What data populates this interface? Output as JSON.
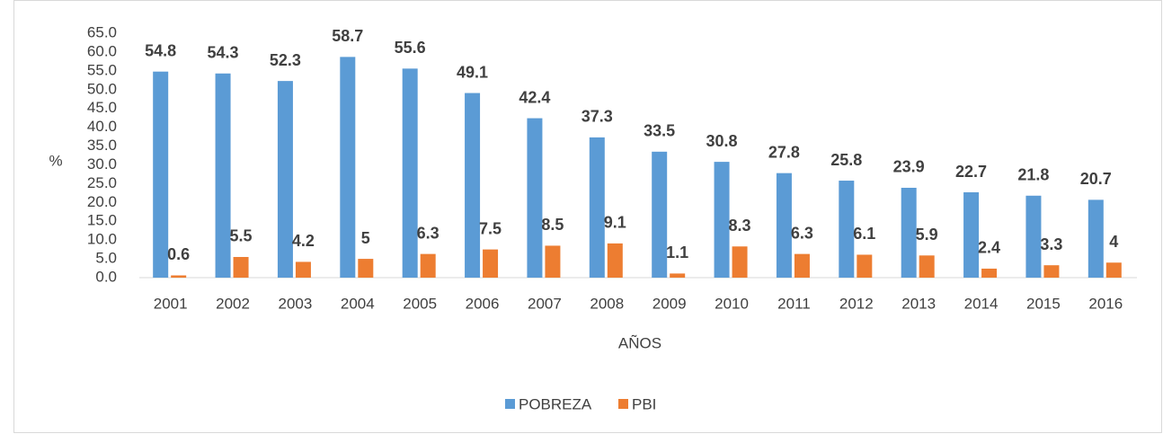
{
  "chart_data": {
    "type": "bar",
    "x_label": "AÑOS",
    "y_label": "%",
    "categories": [
      "2001",
      "2002",
      "2003",
      "2004",
      "2005",
      "2006",
      "2007",
      "2008",
      "2009",
      "2010",
      "2011",
      "2012",
      "2013",
      "2014",
      "2015",
      "2016"
    ],
    "series": [
      {
        "name": "POBREZA",
        "color": "#5b9bd5",
        "values": [
          54.8,
          54.3,
          52.3,
          58.7,
          55.6,
          49.1,
          42.4,
          37.3,
          33.5,
          30.8,
          27.8,
          25.8,
          23.9,
          22.7,
          21.8,
          20.7
        ]
      },
      {
        "name": "PBI",
        "color": "#ed7d31",
        "values": [
          0.6,
          5.5,
          4.2,
          5,
          6.3,
          7.5,
          8.5,
          9.1,
          1.1,
          8.3,
          6.3,
          6.1,
          5.9,
          2.4,
          3.3,
          4
        ]
      }
    ],
    "ylim": [
      0,
      65
    ],
    "yticks": [
      {
        "value": 0,
        "label": "0.0"
      },
      {
        "value": 5,
        "label": "5.0"
      },
      {
        "value": 10,
        "label": "10.0"
      },
      {
        "value": 15,
        "label": "15.0"
      },
      {
        "value": 20,
        "label": "20.0"
      },
      {
        "value": 25,
        "label": "25.0"
      },
      {
        "value": 30,
        "label": "30.0"
      },
      {
        "value": 35,
        "label": "35.0"
      },
      {
        "value": 40,
        "label": "40.0"
      },
      {
        "value": 45,
        "label": "45.0"
      },
      {
        "value": 50,
        "label": "50.0"
      },
      {
        "value": 55,
        "label": "55.0"
      },
      {
        "value": 60,
        "label": "60.0"
      },
      {
        "value": 65,
        "label": "65.0"
      }
    ],
    "grid": false,
    "legend": "bottom"
  }
}
